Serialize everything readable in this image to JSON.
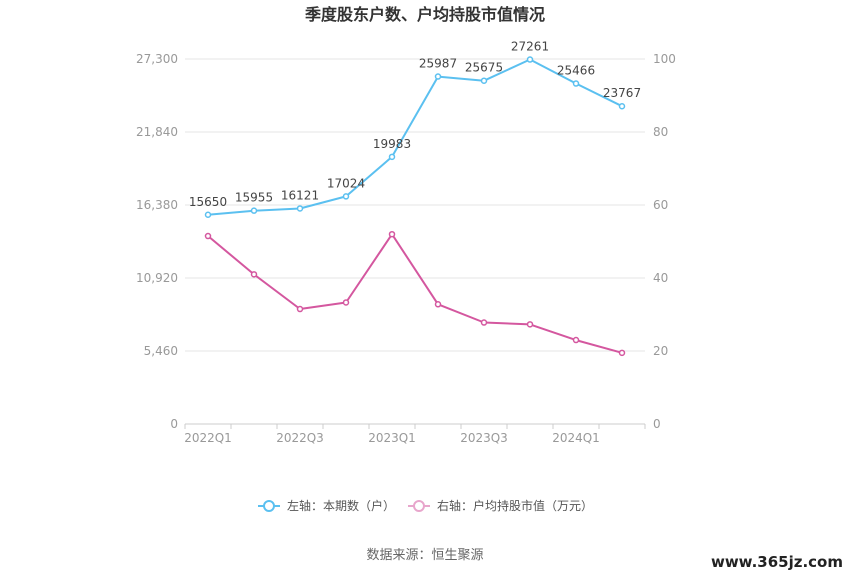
{
  "chart_data": {
    "type": "line",
    "title": "季度股东户数、户均持股市值情况",
    "categories": [
      "2022Q1",
      "2022Q2",
      "2022Q3",
      "2022Q4",
      "2023Q1",
      "2023Q2",
      "2023Q3",
      "2023Q4",
      "2024Q1",
      "2024Q2"
    ],
    "x_tick_labels": [
      "2022Q1",
      "2022Q3",
      "2023Q1",
      "2023Q3",
      "2024Q1"
    ],
    "left_axis": {
      "ylim": [
        0,
        27300
      ],
      "ticks": [
        "0",
        "5,460",
        "10,920",
        "16,380",
        "21,840",
        "27,300"
      ]
    },
    "right_axis": {
      "ylim": [
        0,
        100
      ],
      "ticks": [
        "0",
        "20",
        "40",
        "60",
        "80",
        "100"
      ]
    },
    "grid": true,
    "legend_position": "bottom",
    "series": [
      {
        "name": "左轴：本期数（户）",
        "axis": "left",
        "color": "#5bc0f0",
        "values": [
          15650,
          15955,
          16121,
          17024,
          19983,
          25987,
          25675,
          27261,
          25466,
          23767
        ],
        "labels": [
          "15650",
          "15955",
          "16121",
          "17024",
          "19983",
          "25987",
          "25675",
          "27261",
          "25466",
          "23767"
        ]
      },
      {
        "name": "右轴：户均持股市值（万元）",
        "axis": "right",
        "color": "#d4579f",
        "values": [
          51.5,
          41.0,
          31.5,
          33.3,
          52.0,
          32.8,
          27.8,
          27.3,
          23.0,
          19.5
        ]
      }
    ]
  },
  "source": "数据来源：恒生聚源",
  "watermark": "www.365jz.com"
}
